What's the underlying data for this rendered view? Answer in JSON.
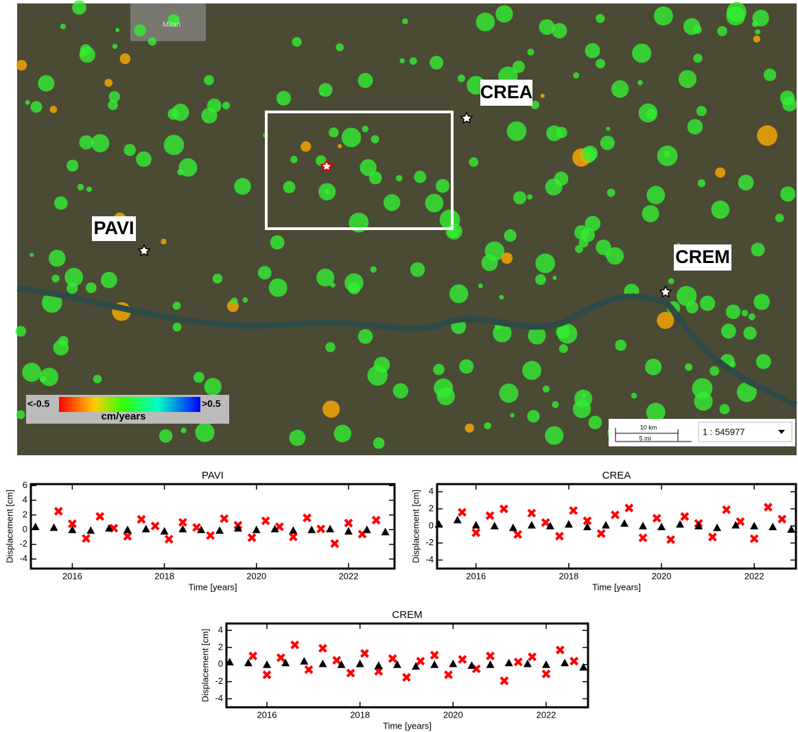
{
  "map": {
    "city": "Milan",
    "stations": [
      "PAVI",
      "CREA",
      "CREM"
    ],
    "legend": {
      "min": "<-0.5",
      "max": ">0.5",
      "unit": "cm/years"
    },
    "scale": {
      "km": "10 km",
      "mi": "5 mi",
      "ratio": "1 : 545977"
    }
  },
  "chart_data": [
    {
      "type": "scatter",
      "title": "PAVI",
      "x_label": "Time [years]",
      "y_label": "Displacement [cm]",
      "xlim": [
        2015.1,
        2023.0
      ],
      "ylim": [
        -5.3,
        6.2
      ],
      "xticks": [
        2016,
        2018,
        2020,
        2022
      ],
      "yticks": [
        -4,
        -2,
        0,
        2,
        4,
        6
      ],
      "series": [
        {
          "color": "#ff0000",
          "marker": "x",
          "x": [
            2015.7,
            2016.0,
            2016.3,
            2016.6,
            2016.9,
            2017.2,
            2017.5,
            2017.8,
            2018.1,
            2018.4,
            2018.7,
            2019.0,
            2019.3,
            2019.6,
            2019.9,
            2020.2,
            2020.5,
            2020.8,
            2021.1,
            2021.4,
            2021.7,
            2022.0,
            2022.3,
            2022.6
          ],
          "values": [
            2.5,
            0.8,
            -1.2,
            1.8,
            0.2,
            -0.9,
            1.4,
            0.5,
            -1.3,
            1.0,
            0.3,
            -0.8,
            1.5,
            0.6,
            -1.1,
            1.2,
            0.4,
            -1.0,
            1.6,
            0.1,
            -1.9,
            0.9,
            -0.6,
            1.3
          ]
        },
        {
          "color": "#000000",
          "marker": "triangle",
          "x": [
            2015.2,
            2015.6,
            2016.0,
            2016.4,
            2016.8,
            2017.2,
            2017.6,
            2018.0,
            2018.4,
            2018.8,
            2019.2,
            2019.6,
            2020.0,
            2020.4,
            2020.8,
            2021.2,
            2021.6,
            2022.0,
            2022.4,
            2022.8
          ],
          "values": [
            0.4,
            0.3,
            0.0,
            -0.1,
            0.2,
            0.0,
            0.1,
            -0.2,
            0.1,
            0.0,
            -0.1,
            0.2,
            0.0,
            0.1,
            -0.1,
            0.0,
            0.1,
            -0.2,
            0.0,
            -0.3
          ]
        }
      ]
    },
    {
      "type": "scatter",
      "title": "CREA",
      "x_label": "Time [years]",
      "y_label": "Displacement [cm]",
      "xlim": [
        2015.16,
        2022.9
      ],
      "ylim": [
        -5.0,
        4.9
      ],
      "xticks": [
        2016,
        2018,
        2020,
        2022
      ],
      "yticks": [
        -4,
        -2,
        0,
        2,
        4
      ],
      "series": [
        {
          "color": "#ff0000",
          "marker": "x",
          "x": [
            2015.7,
            2016.0,
            2016.3,
            2016.6,
            2016.9,
            2017.2,
            2017.5,
            2017.8,
            2018.1,
            2018.4,
            2018.7,
            2019.0,
            2019.3,
            2019.6,
            2019.9,
            2020.2,
            2020.5,
            2020.8,
            2021.1,
            2021.4,
            2021.7,
            2022.0,
            2022.3,
            2022.6
          ],
          "values": [
            1.6,
            -0.8,
            1.2,
            2.0,
            -1.0,
            1.5,
            0.4,
            -1.2,
            1.8,
            0.6,
            -0.9,
            1.3,
            2.1,
            -1.4,
            0.9,
            -1.6,
            1.1,
            0.3,
            -1.3,
            1.9,
            0.5,
            -1.5,
            2.2,
            0.8
          ]
        },
        {
          "color": "#000000",
          "marker": "triangle",
          "x": [
            2015.2,
            2015.6,
            2016.0,
            2016.4,
            2016.8,
            2017.2,
            2017.6,
            2018.0,
            2018.4,
            2018.8,
            2019.2,
            2019.6,
            2020.0,
            2020.4,
            2020.8,
            2021.2,
            2021.6,
            2022.0,
            2022.4,
            2022.8
          ],
          "values": [
            0.2,
            0.7,
            0.1,
            0.0,
            -0.2,
            0.1,
            0.0,
            0.2,
            -0.1,
            0.1,
            0.3,
            0.0,
            -0.1,
            0.2,
            0.0,
            -0.2,
            0.1,
            0.0,
            -0.1,
            -0.4
          ]
        }
      ]
    },
    {
      "type": "scatter",
      "title": "CREM",
      "x_label": "Time [years]",
      "y_label": "Displacement [cm]",
      "xlim": [
        2015.13,
        2022.9
      ],
      "ylim": [
        -5.0,
        4.8
      ],
      "xticks": [
        2016,
        2018,
        2020,
        2022
      ],
      "yticks": [
        -4,
        -2,
        0,
        2,
        4
      ],
      "series": [
        {
          "color": "#ff0000",
          "marker": "x",
          "x": [
            2015.7,
            2016.0,
            2016.3,
            2016.6,
            2016.9,
            2017.2,
            2017.5,
            2017.8,
            2018.1,
            2018.4,
            2018.7,
            2019.0,
            2019.3,
            2019.6,
            2019.9,
            2020.2,
            2020.5,
            2020.8,
            2021.1,
            2021.4,
            2021.7,
            2022.0,
            2022.3,
            2022.6
          ],
          "values": [
            1.0,
            -1.2,
            0.8,
            2.3,
            -0.6,
            1.9,
            0.5,
            -1.0,
            1.3,
            -0.8,
            0.7,
            -1.5,
            0.4,
            1.1,
            -1.2,
            0.6,
            -0.5,
            1.0,
            -1.9,
            0.3,
            0.9,
            -1.1,
            1.7,
            0.4
          ]
        },
        {
          "color": "#000000",
          "marker": "triangle",
          "x": [
            2015.2,
            2015.6,
            2016.0,
            2016.4,
            2016.8,
            2017.2,
            2017.6,
            2018.0,
            2018.4,
            2018.8,
            2019.2,
            2019.6,
            2020.0,
            2020.4,
            2020.8,
            2021.2,
            2021.6,
            2022.0,
            2022.4,
            2022.8
          ],
          "values": [
            0.3,
            0.2,
            0.0,
            0.2,
            0.4,
            0.1,
            0.0,
            0.1,
            -0.1,
            0.0,
            -0.2,
            0.0,
            0.1,
            -0.1,
            0.0,
            0.2,
            0.1,
            0.0,
            0.2,
            -0.3
          ]
        }
      ]
    }
  ]
}
